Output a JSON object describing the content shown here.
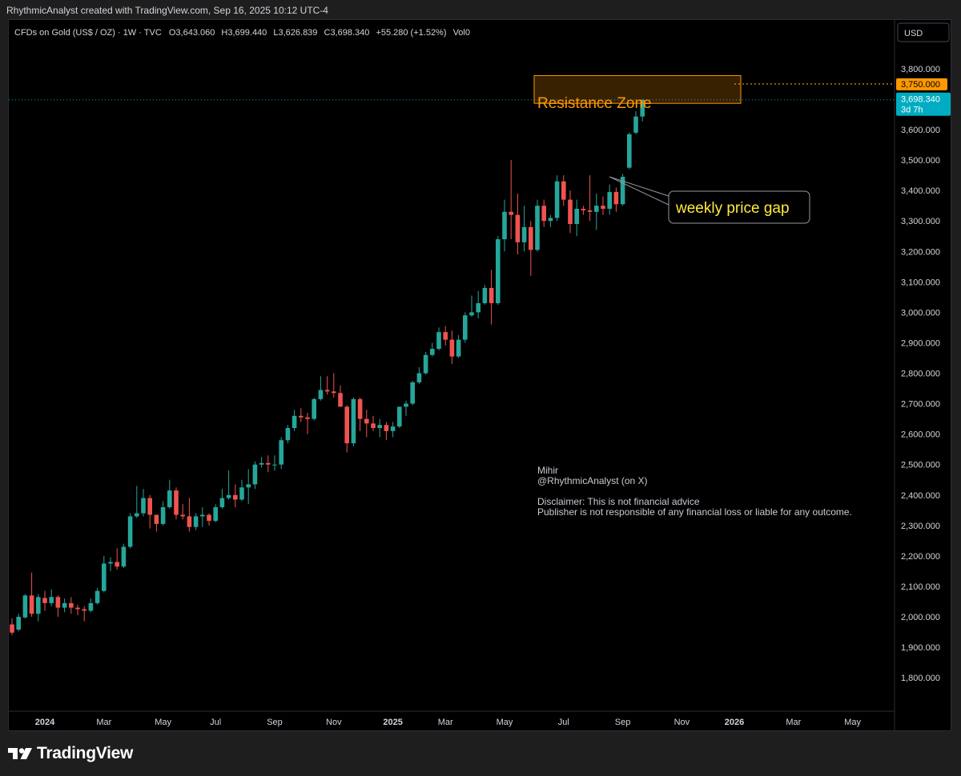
{
  "caption": "RhythmicAnalyst created with TradingView.com, Sep 16, 2025 10:12 UTC-4",
  "legend": {
    "symbol": "CFDs on Gold (US$ / OZ) · 1W · TVC",
    "open_label": "O",
    "open": "3,643.060",
    "high_label": "H",
    "high": "3,699.440",
    "low_label": "L",
    "low": "3,626.839",
    "close_label": "C",
    "close": "3,698.340",
    "change": "+55.280 (+1.52%)",
    "vol_label": "Vol",
    "vol": "0"
  },
  "currency": "USD",
  "annotations": {
    "resistance_label": "Resistance Zone",
    "gap_label": "weekly price gap",
    "author_name": "Mihir",
    "author_handle": "@RhythmicAnalyst (on X)",
    "disclaimer_1": "Disclaimer: This is not financial advice",
    "disclaimer_2": "Publisher is not responsible of any financial loss or liable for any outcome."
  },
  "price_tags": {
    "resistance": "3,750.000",
    "last": "3,698.340",
    "countdown": "3d 7h"
  },
  "brand": "TradingView",
  "colors": {
    "up": "#26a69a",
    "down": "#ef5350",
    "orange": "#ff9800",
    "last_tag": "#00acc1",
    "annotation_text": "#ffeb3b"
  },
  "chart_data": {
    "type": "candlestick",
    "interval": "1W",
    "y_ticks": [
      "3,800.000",
      "3,700.000",
      "3,600.000",
      "3,500.000",
      "3,400.000",
      "3,300.000",
      "3,200.000",
      "3,100.000",
      "3,000.000",
      "2,900.000",
      "2,800.000",
      "2,700.000",
      "2,600.000",
      "2,500.000",
      "2,400.000",
      "2,300.000",
      "2,200.000",
      "2,100.000",
      "2,000.000",
      "1,900.000",
      "1,800.000"
    ],
    "y_tick_values": [
      3800,
      3700,
      3600,
      3500,
      3400,
      3300,
      3200,
      3100,
      3000,
      2900,
      2800,
      2700,
      2600,
      2500,
      2400,
      2300,
      2200,
      2100,
      2000,
      1900,
      1800
    ],
    "ylim": [
      1690,
      3960
    ],
    "x_ticks": [
      {
        "label": "2024",
        "week": 0,
        "year": true
      },
      {
        "label": "Mar",
        "week": 9
      },
      {
        "label": "May",
        "week": 18
      },
      {
        "label": "Jul",
        "week": 26
      },
      {
        "label": "Sep",
        "week": 35
      },
      {
        "label": "Nov",
        "week": 44
      },
      {
        "label": "2025",
        "week": 53,
        "year": true
      },
      {
        "label": "Mar",
        "week": 61
      },
      {
        "label": "May",
        "week": 70
      },
      {
        "label": "Jul",
        "week": 79
      },
      {
        "label": "Sep",
        "week": 88
      },
      {
        "label": "Nov",
        "week": 97
      },
      {
        "label": "2026",
        "week": 105,
        "year": true
      },
      {
        "label": "Mar",
        "week": 114
      },
      {
        "label": "May",
        "week": 123
      }
    ],
    "resistance_zone": {
      "low": 3660,
      "high": 3725,
      "week_start": 75,
      "week_end": 105,
      "level": 3750
    },
    "gap_point": {
      "week": 86,
      "price": 3445
    },
    "candles": [
      {
        "w": -5,
        "o": 1975,
        "h": 1995,
        "l": 1940,
        "c": 1948
      },
      {
        "w": -4,
        "o": 1958,
        "h": 2010,
        "l": 1952,
        "c": 2000
      },
      {
        "w": -3,
        "o": 1998,
        "h": 2075,
        "l": 1995,
        "c": 2070
      },
      {
        "w": -2,
        "o": 2070,
        "h": 2145,
        "l": 2000,
        "c": 2010
      },
      {
        "w": -1,
        "o": 2010,
        "h": 2075,
        "l": 1985,
        "c": 2065
      },
      {
        "w": 0,
        "o": 2062,
        "h": 2085,
        "l": 2020,
        "c": 2045
      },
      {
        "w": 1,
        "o": 2045,
        "h": 2090,
        "l": 2035,
        "c": 2065
      },
      {
        "w": 2,
        "o": 2065,
        "h": 2070,
        "l": 2000,
        "c": 2030
      },
      {
        "w": 3,
        "o": 2030,
        "h": 2060,
        "l": 2015,
        "c": 2045
      },
      {
        "w": 4,
        "o": 2045,
        "h": 2065,
        "l": 2010,
        "c": 2030
      },
      {
        "w": 5,
        "o": 2030,
        "h": 2040,
        "l": 2005,
        "c": 2025
      },
      {
        "w": 6,
        "o": 2025,
        "h": 2035,
        "l": 1985,
        "c": 2020
      },
      {
        "w": 7,
        "o": 2020,
        "h": 2060,
        "l": 2015,
        "c": 2045
      },
      {
        "w": 8,
        "o": 2045,
        "h": 2095,
        "l": 2040,
        "c": 2085
      },
      {
        "w": 9,
        "o": 2085,
        "h": 2200,
        "l": 2080,
        "c": 2175
      },
      {
        "w": 10,
        "o": 2175,
        "h": 2195,
        "l": 2150,
        "c": 2180
      },
      {
        "w": 11,
        "o": 2180,
        "h": 2225,
        "l": 2155,
        "c": 2165
      },
      {
        "w": 12,
        "o": 2165,
        "h": 2240,
        "l": 2160,
        "c": 2230
      },
      {
        "w": 13,
        "o": 2230,
        "h": 2340,
        "l": 2225,
        "c": 2330
      },
      {
        "w": 14,
        "o": 2330,
        "h": 2430,
        "l": 2325,
        "c": 2340
      },
      {
        "w": 15,
        "o": 2340,
        "h": 2420,
        "l": 2330,
        "c": 2390
      },
      {
        "w": 16,
        "o": 2390,
        "h": 2400,
        "l": 2290,
        "c": 2335
      },
      {
        "w": 17,
        "o": 2335,
        "h": 2335,
        "l": 2280,
        "c": 2305
      },
      {
        "w": 18,
        "o": 2305,
        "h": 2380,
        "l": 2300,
        "c": 2360
      },
      {
        "w": 19,
        "o": 2360,
        "h": 2450,
        "l": 2355,
        "c": 2415
      },
      {
        "w": 20,
        "o": 2415,
        "h": 2425,
        "l": 2320,
        "c": 2335
      },
      {
        "w": 21,
        "o": 2335,
        "h": 2370,
        "l": 2320,
        "c": 2330
      },
      {
        "w": 22,
        "o": 2330,
        "h": 2390,
        "l": 2280,
        "c": 2295
      },
      {
        "w": 23,
        "o": 2295,
        "h": 2340,
        "l": 2285,
        "c": 2330
      },
      {
        "w": 24,
        "o": 2330,
        "h": 2360,
        "l": 2295,
        "c": 2335
      },
      {
        "w": 25,
        "o": 2335,
        "h": 2340,
        "l": 2300,
        "c": 2315
      },
      {
        "w": 26,
        "o": 2315,
        "h": 2370,
        "l": 2310,
        "c": 2360
      },
      {
        "w": 27,
        "o": 2360,
        "h": 2420,
        "l": 2355,
        "c": 2390
      },
      {
        "w": 28,
        "o": 2390,
        "h": 2480,
        "l": 2385,
        "c": 2400
      },
      {
        "w": 29,
        "o": 2400,
        "h": 2435,
        "l": 2360,
        "c": 2385
      },
      {
        "w": 30,
        "o": 2385,
        "h": 2450,
        "l": 2380,
        "c": 2425
      },
      {
        "w": 31,
        "o": 2425,
        "h": 2485,
        "l": 2370,
        "c": 2435
      },
      {
        "w": 32,
        "o": 2435,
        "h": 2510,
        "l": 2420,
        "c": 2500
      },
      {
        "w": 33,
        "o": 2500,
        "h": 2525,
        "l": 2490,
        "c": 2505
      },
      {
        "w": 34,
        "o": 2505,
        "h": 2530,
        "l": 2475,
        "c": 2500
      },
      {
        "w": 35,
        "o": 2500,
        "h": 2530,
        "l": 2480,
        "c": 2500
      },
      {
        "w": 36,
        "o": 2500,
        "h": 2590,
        "l": 2485,
        "c": 2580
      },
      {
        "w": 37,
        "o": 2580,
        "h": 2630,
        "l": 2570,
        "c": 2620
      },
      {
        "w": 38,
        "o": 2620,
        "h": 2680,
        "l": 2610,
        "c": 2660
      },
      {
        "w": 39,
        "o": 2660,
        "h": 2685,
        "l": 2640,
        "c": 2655
      },
      {
        "w": 40,
        "o": 2655,
        "h": 2670,
        "l": 2600,
        "c": 2650
      },
      {
        "w": 41,
        "o": 2650,
        "h": 2720,
        "l": 2645,
        "c": 2715
      },
      {
        "w": 42,
        "o": 2715,
        "h": 2790,
        "l": 2710,
        "c": 2745
      },
      {
        "w": 43,
        "o": 2745,
        "h": 2790,
        "l": 2730,
        "c": 2740
      },
      {
        "w": 44,
        "o": 2740,
        "h": 2800,
        "l": 2720,
        "c": 2735
      },
      {
        "w": 45,
        "o": 2735,
        "h": 2760,
        "l": 2690,
        "c": 2690
      },
      {
        "w": 46,
        "o": 2690,
        "h": 2695,
        "l": 2540,
        "c": 2570
      },
      {
        "w": 47,
        "o": 2570,
        "h": 2720,
        "l": 2560,
        "c": 2715
      },
      {
        "w": 48,
        "o": 2715,
        "h": 2720,
        "l": 2610,
        "c": 2650
      },
      {
        "w": 49,
        "o": 2650,
        "h": 2680,
        "l": 2590,
        "c": 2635
      },
      {
        "w": 50,
        "o": 2635,
        "h": 2660,
        "l": 2610,
        "c": 2620
      },
      {
        "w": 51,
        "o": 2620,
        "h": 2650,
        "l": 2590,
        "c": 2630
      },
      {
        "w": 52,
        "o": 2630,
        "h": 2640,
        "l": 2580,
        "c": 2610
      },
      {
        "w": 53,
        "o": 2610,
        "h": 2640,
        "l": 2590,
        "c": 2625
      },
      {
        "w": 54,
        "o": 2625,
        "h": 2690,
        "l": 2620,
        "c": 2690
      },
      {
        "w": 55,
        "o": 2690,
        "h": 2710,
        "l": 2660,
        "c": 2700
      },
      {
        "w": 56,
        "o": 2700,
        "h": 2775,
        "l": 2695,
        "c": 2770
      },
      {
        "w": 57,
        "o": 2770,
        "h": 2820,
        "l": 2765,
        "c": 2800
      },
      {
        "w": 58,
        "o": 2800,
        "h": 2870,
        "l": 2795,
        "c": 2860
      },
      {
        "w": 59,
        "o": 2860,
        "h": 2900,
        "l": 2855,
        "c": 2880
      },
      {
        "w": 60,
        "o": 2880,
        "h": 2950,
        "l": 2875,
        "c": 2935
      },
      {
        "w": 61,
        "o": 2935,
        "h": 2955,
        "l": 2890,
        "c": 2910
      },
      {
        "w": 62,
        "o": 2910,
        "h": 2940,
        "l": 2830,
        "c": 2855
      },
      {
        "w": 63,
        "o": 2855,
        "h": 2925,
        "l": 2850,
        "c": 2910
      },
      {
        "w": 64,
        "o": 2910,
        "h": 3000,
        "l": 2900,
        "c": 2990
      },
      {
        "w": 65,
        "o": 2990,
        "h": 3055,
        "l": 2985,
        "c": 3000
      },
      {
        "w": 66,
        "o": 3000,
        "h": 3070,
        "l": 2980,
        "c": 3030
      },
      {
        "w": 67,
        "o": 3030,
        "h": 3090,
        "l": 3025,
        "c": 3080
      },
      {
        "w": 68,
        "o": 3080,
        "h": 3140,
        "l": 2960,
        "c": 3030
      },
      {
        "w": 69,
        "o": 3030,
        "h": 3250,
        "l": 3025,
        "c": 3240
      },
      {
        "w": 70,
        "o": 3240,
        "h": 3370,
        "l": 3200,
        "c": 3330
      },
      {
        "w": 71,
        "o": 3330,
        "h": 3500,
        "l": 3240,
        "c": 3320
      },
      {
        "w": 72,
        "o": 3320,
        "h": 3390,
        "l": 3190,
        "c": 3230
      },
      {
        "w": 73,
        "o": 3230,
        "h": 3350,
        "l": 3200,
        "c": 3280
      },
      {
        "w": 74,
        "o": 3280,
        "h": 3300,
        "l": 3120,
        "c": 3205
      },
      {
        "w": 75,
        "o": 3205,
        "h": 3370,
        "l": 3200,
        "c": 3350
      },
      {
        "w": 76,
        "o": 3350,
        "h": 3370,
        "l": 3280,
        "c": 3300
      },
      {
        "w": 77,
        "o": 3300,
        "h": 3320,
        "l": 3280,
        "c": 3310
      },
      {
        "w": 78,
        "o": 3310,
        "h": 3450,
        "l": 3300,
        "c": 3430
      },
      {
        "w": 79,
        "o": 3430,
        "h": 3450,
        "l": 3350,
        "c": 3370
      },
      {
        "w": 80,
        "o": 3370,
        "h": 3400,
        "l": 3260,
        "c": 3290
      },
      {
        "w": 81,
        "o": 3290,
        "h": 3370,
        "l": 3250,
        "c": 3340
      },
      {
        "w": 82,
        "o": 3340,
        "h": 3350,
        "l": 3320,
        "c": 3335
      },
      {
        "w": 83,
        "o": 3335,
        "h": 3450,
        "l": 3300,
        "c": 3330
      },
      {
        "w": 84,
        "o": 3330,
        "h": 3390,
        "l": 3270,
        "c": 3350
      },
      {
        "w": 85,
        "o": 3350,
        "h": 3380,
        "l": 3320,
        "c": 3340
      },
      {
        "w": 86,
        "o": 3340,
        "h": 3420,
        "l": 3320,
        "c": 3395
      },
      {
        "w": 87,
        "o": 3395,
        "h": 3410,
        "l": 3330,
        "c": 3355
      },
      {
        "w": 88,
        "o": 3355,
        "h": 3455,
        "l": 3350,
        "c": 3445
      },
      {
        "w": 89,
        "o": 3475,
        "h": 3590,
        "l": 3470,
        "c": 3585
      },
      {
        "w": 90,
        "o": 3590,
        "h": 3660,
        "l": 3585,
        "c": 3643
      },
      {
        "w": 91,
        "o": 3643,
        "h": 3699,
        "l": 3627,
        "c": 3698
      }
    ]
  }
}
